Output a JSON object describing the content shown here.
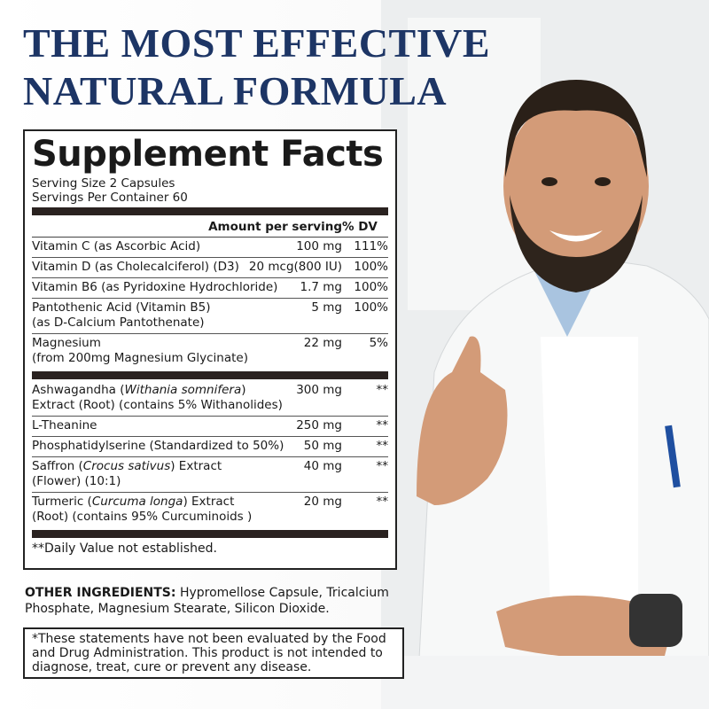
{
  "header": {
    "title_lines": [
      "THE MOST EFFECTIVE",
      "NATURAL FORMULA"
    ]
  },
  "facts": {
    "title": "Supplement Facts",
    "serving_size": "Serving Size 2 Capsules",
    "servings": "Servings Per Container 60",
    "column_headers": [
      "Amount per serving",
      "% DV"
    ],
    "groups": [
      [
        {
          "name": [
            "Vitamin C (as Ascorbic Acid)"
          ],
          "amount": "100 mg",
          "dv": "111%"
        },
        {
          "name": [
            "Vitamin D (as Cholecalciferol) (D3)"
          ],
          "amount": "20 mcg(800 IU)",
          "dv": "100%"
        },
        {
          "name": [
            "Vitamin B6 (as Pyridoxine Hydrochloride)"
          ],
          "amount": "1.7 mg",
          "dv": "100%"
        },
        {
          "name": [
            "Pantothenic Acid (Vitamin B5)",
            "(as D-Calcium Pantothenate)"
          ],
          "amount": "5 mg",
          "dv": "100%"
        },
        {
          "name": [
            "Magnesium",
            "(from 200mg Magnesium Glycinate)"
          ],
          "amount": "22 mg",
          "dv": "5%"
        }
      ],
      [
        {
          "name": [
            [
              "Ashwagandha (",
              {
                "italic": "Withania somnifera"
              },
              ")"
            ],
            "Extract  (Root) (contains 5% Withanolides)"
          ],
          "amount": "300 mg",
          "dv": "**"
        },
        {
          "name": [
            "L-Theanine"
          ],
          "amount": "250 mg",
          "dv": "**"
        },
        {
          "name": [
            "Phosphatidylserine (Standardized to 50%)"
          ],
          "amount": "50 mg",
          "dv": "**"
        },
        {
          "name": [
            [
              "Saffron (",
              {
                "italic": "Crocus sativus"
              },
              ") Extract"
            ],
            "(Flower) (10:1)"
          ],
          "amount": "40 mg",
          "dv": "**"
        },
        {
          "name": [
            [
              "Turmeric (",
              {
                "italic": "Curcuma longa"
              },
              ") Extract"
            ],
            "(Root) (contains 95% Curcuminoids )"
          ],
          "amount": "20 mg",
          "dv": "**"
        }
      ]
    ],
    "footnote": "**Daily Value not established."
  },
  "other_ingredients": {
    "label": "OTHER INGREDIENTS:",
    "text": "Hypromellose Capsule, Tricalcium Phosphate, Magnesium Stearate, Silicon Dioxide."
  },
  "disclaimer": "*These statements have not been evaluated by the Food and Drug Administration. This product is not intended to diagnose, treat, cure or prevent any disease."
}
